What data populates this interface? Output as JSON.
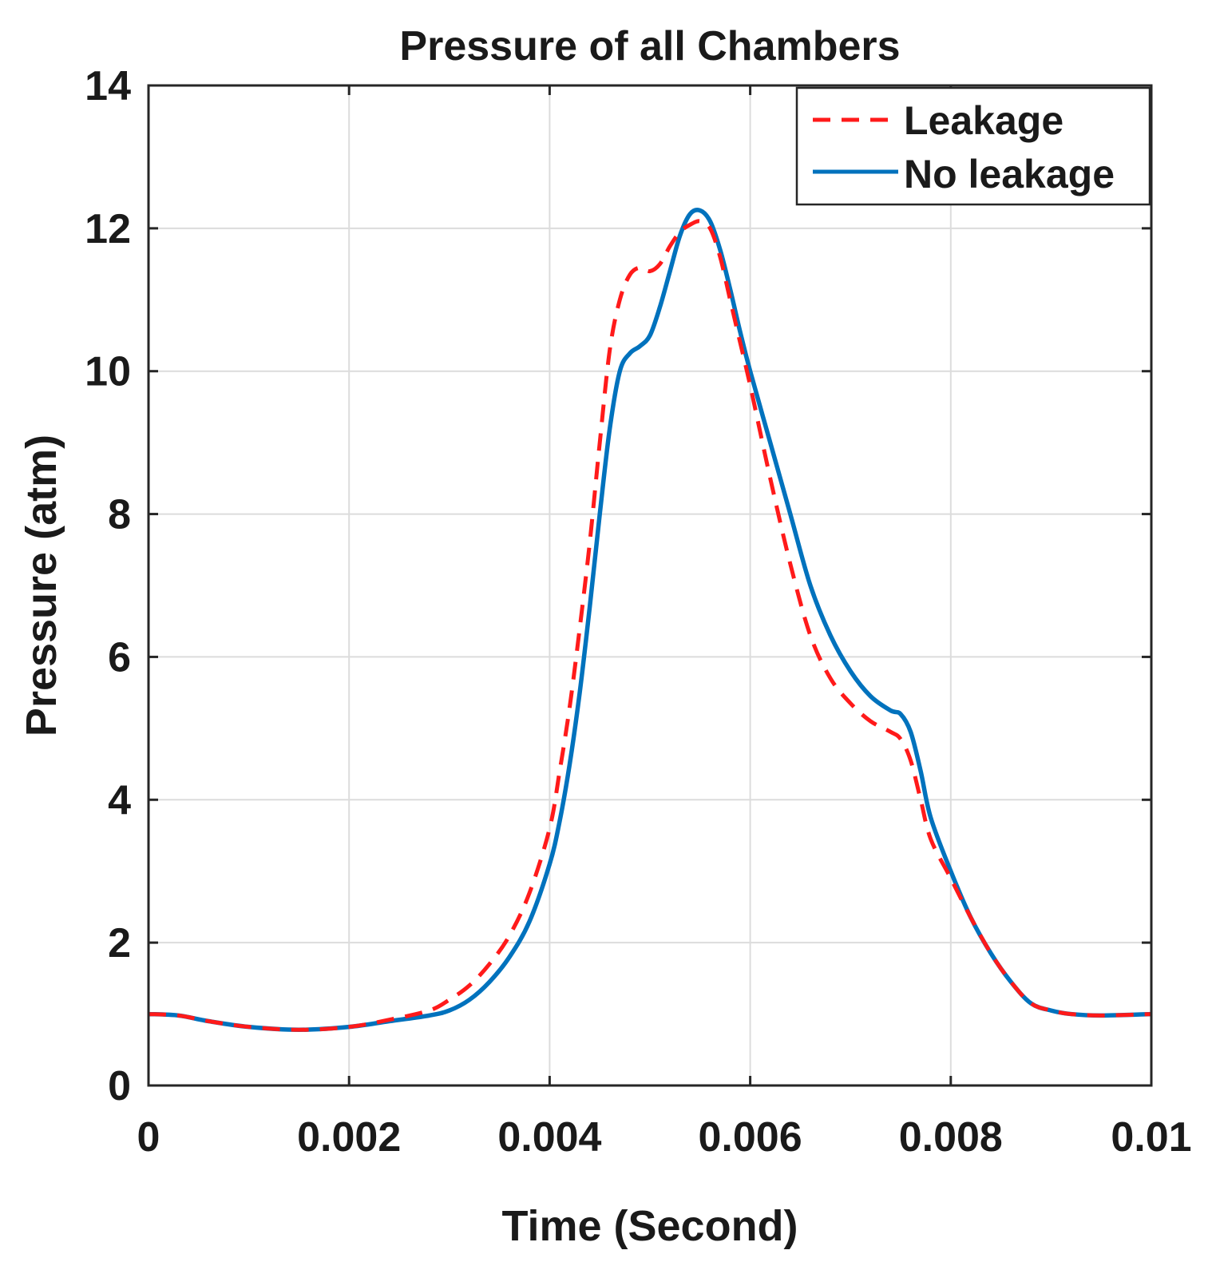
{
  "chart_data": {
    "type": "line",
    "title": "Pressure of all Chambers",
    "xlabel": "Time (Second)",
    "ylabel": "Pressure (atm)",
    "xlim": [
      0,
      0.01
    ],
    "ylim": [
      0,
      14
    ],
    "grid": true,
    "legend_position": "top-right",
    "x_ticks": [
      0,
      0.002,
      0.004,
      0.006,
      0.008,
      0.01
    ],
    "x_tick_labels": [
      "0",
      "0.002",
      "0.004",
      "0.006",
      "0.008",
      "0.01"
    ],
    "y_ticks": [
      0,
      2,
      4,
      6,
      8,
      10,
      12,
      14
    ],
    "y_tick_labels": [
      "0",
      "2",
      "4",
      "6",
      "8",
      "10",
      "12",
      "14"
    ],
    "series": [
      {
        "name": "Leakage",
        "color": "#ff1a1a",
        "style": "dashed",
        "x": [
          0,
          0.0003,
          0.0006,
          0.001,
          0.0015,
          0.002,
          0.0024,
          0.0028,
          0.003,
          0.0032,
          0.0034,
          0.0036,
          0.0038,
          0.004,
          0.0041,
          0.0042,
          0.0043,
          0.0044,
          0.0045,
          0.0046,
          0.0047,
          0.0048,
          0.0049,
          0.005,
          0.0051,
          0.0052,
          0.0053,
          0.0054,
          0.0055,
          0.0056,
          0.0057,
          0.0058,
          0.0059,
          0.006,
          0.0062,
          0.0064,
          0.0066,
          0.0068,
          0.007,
          0.0072,
          0.0074,
          0.0075,
          0.0076,
          0.0077,
          0.0078,
          0.008,
          0.0082,
          0.0084,
          0.0086,
          0.0088,
          0.009,
          0.0092,
          0.0095,
          0.01
        ],
        "y": [
          1.0,
          0.98,
          0.9,
          0.82,
          0.78,
          0.82,
          0.92,
          1.05,
          1.2,
          1.4,
          1.7,
          2.1,
          2.7,
          3.6,
          4.4,
          5.3,
          6.4,
          7.6,
          9.0,
          10.3,
          11.0,
          11.35,
          11.45,
          11.4,
          11.5,
          11.75,
          11.95,
          12.05,
          12.1,
          12.0,
          11.6,
          11.0,
          10.4,
          9.8,
          8.5,
          7.3,
          6.3,
          5.7,
          5.35,
          5.1,
          4.95,
          4.85,
          4.55,
          4.0,
          3.45,
          2.9,
          2.35,
          1.85,
          1.45,
          1.15,
          1.05,
          1.0,
          0.98,
          1.0
        ]
      },
      {
        "name": "No leakage",
        "color": "#0072bd",
        "style": "solid",
        "x": [
          0,
          0.0003,
          0.0006,
          0.001,
          0.0015,
          0.002,
          0.0024,
          0.0028,
          0.003,
          0.0032,
          0.0034,
          0.0036,
          0.0038,
          0.004,
          0.0041,
          0.0042,
          0.0043,
          0.0044,
          0.0045,
          0.0046,
          0.0047,
          0.0048,
          0.0049,
          0.005,
          0.0051,
          0.0052,
          0.0053,
          0.0054,
          0.0055,
          0.0056,
          0.0057,
          0.0058,
          0.0059,
          0.006,
          0.0062,
          0.0064,
          0.0066,
          0.0068,
          0.007,
          0.0072,
          0.0074,
          0.0075,
          0.0076,
          0.0077,
          0.0078,
          0.008,
          0.0082,
          0.0084,
          0.0086,
          0.0088,
          0.009,
          0.0092,
          0.0095,
          0.01
        ],
        "y": [
          1.0,
          0.98,
          0.9,
          0.82,
          0.78,
          0.82,
          0.9,
          0.98,
          1.05,
          1.2,
          1.45,
          1.8,
          2.3,
          3.1,
          3.7,
          4.5,
          5.5,
          6.7,
          8.0,
          9.2,
          10.0,
          10.25,
          10.35,
          10.5,
          10.9,
          11.4,
          11.9,
          12.2,
          12.25,
          12.1,
          11.7,
          11.15,
          10.55,
          10.0,
          9.0,
          8.0,
          7.0,
          6.3,
          5.8,
          5.45,
          5.25,
          5.2,
          4.95,
          4.4,
          3.75,
          3.0,
          2.35,
          1.85,
          1.45,
          1.15,
          1.05,
          1.0,
          0.98,
          1.0
        ]
      }
    ]
  }
}
